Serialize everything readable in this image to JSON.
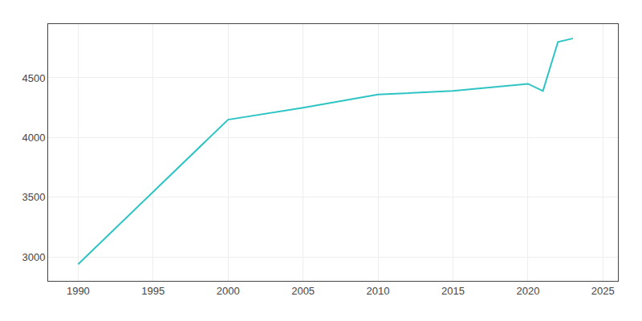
{
  "chart_data": {
    "type": "line",
    "x": [
      1990,
      2000,
      2005,
      2010,
      2015,
      2020,
      2021,
      2022,
      2023
    ],
    "values": [
      2940,
      4150,
      4250,
      4360,
      4390,
      4450,
      4390,
      4800,
      4830
    ],
    "color": "#2EC4C4",
    "xlim": [
      1988,
      2026
    ],
    "ylim": [
      2800,
      4950
    ],
    "xticks": [
      1990,
      1995,
      2000,
      2005,
      2010,
      2015,
      2020,
      2025
    ],
    "yticks": [
      3000,
      3500,
      4000,
      4500
    ],
    "grid": true
  }
}
